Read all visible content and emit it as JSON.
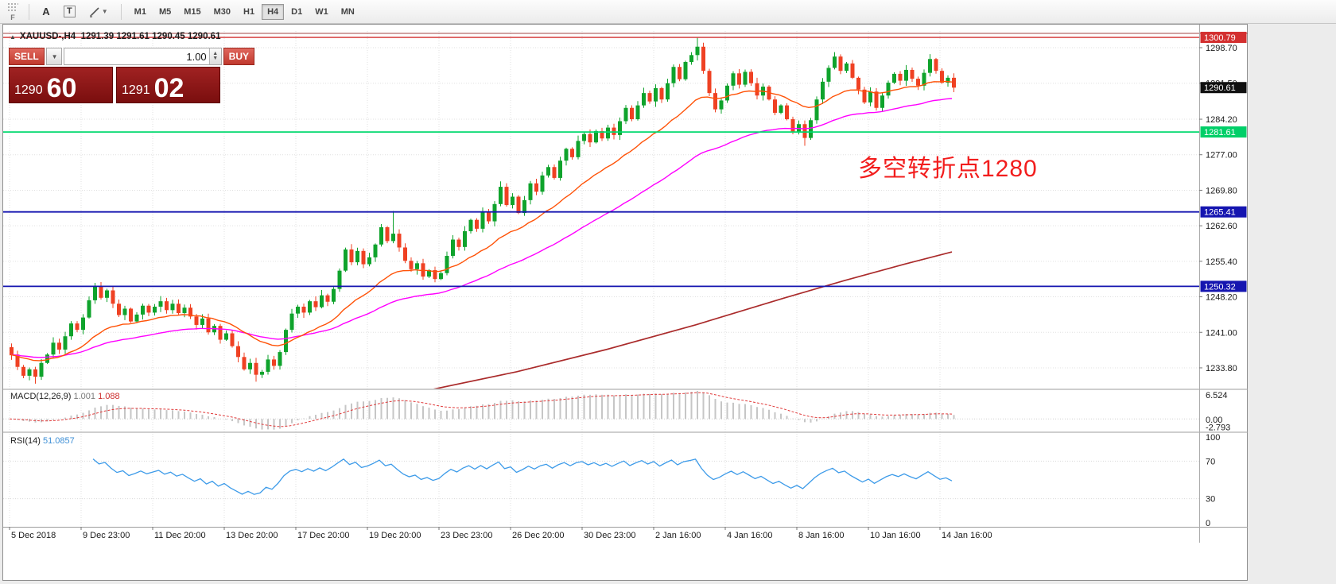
{
  "toolbar": {
    "corner_label": "F",
    "icon_a_label": "A",
    "icon_t_label": "T",
    "timeframes": [
      "M1",
      "M5",
      "M15",
      "M30",
      "H1",
      "H4",
      "D1",
      "W1",
      "MN"
    ],
    "active_timeframe": "H4"
  },
  "chart_header": {
    "icon": "▲",
    "title": "XAUUSD-,H4  1291.39 1291.61 1290.45 1290.61"
  },
  "trade_panel": {
    "sell_label": "SELL",
    "buy_label": "BUY",
    "volume": "1.00",
    "sell_price_main": "1290",
    "sell_price_big": "60",
    "buy_price_main": "1291",
    "buy_price_big": "02"
  },
  "annotation": {
    "text": "多空转折点1280",
    "color": "#f21d1d"
  },
  "price_scale": {
    "labels": [
      {
        "text": "1298.70",
        "value": 1298.7
      },
      {
        "text": "1291.50",
        "value": 1291.5
      },
      {
        "text": "1284.20",
        "value": 1284.2
      },
      {
        "text": "1277.00",
        "value": 1277.0
      },
      {
        "text": "1269.80",
        "value": 1269.8
      },
      {
        "text": "1262.60",
        "value": 1262.6
      },
      {
        "text": "1255.40",
        "value": 1255.4
      },
      {
        "text": "1248.20",
        "value": 1248.2
      },
      {
        "text": "1241.00",
        "value": 1241.0
      },
      {
        "text": "1233.80",
        "value": 1233.8
      }
    ],
    "badges": [
      {
        "name": "resistance-line-price",
        "text": "1300.79",
        "value": 1300.79,
        "bg": "#d32f2f",
        "fg": "#ffffff"
      },
      {
        "name": "green-level-price",
        "text": "1281.61",
        "value": 1281.61,
        "bg": "#00cf68",
        "fg": "#ffffff"
      },
      {
        "name": "support-level-1-price",
        "text": "1265.41",
        "value": 1265.41,
        "bg": "#1515b0",
        "fg": "#ffffff"
      },
      {
        "name": "support-level-2-price",
        "text": "1250.32",
        "value": 1250.32,
        "bg": "#1515b0",
        "fg": "#ffffff"
      },
      {
        "name": "current-price",
        "text": "1290.61",
        "value": 1290.61,
        "bg": "#101010",
        "fg": "#ffffff"
      }
    ]
  },
  "hlines": [
    {
      "value": 1300.79,
      "color": "#d32f2f",
      "width": 1.4
    },
    {
      "value": 1281.61,
      "color": "#00d96d",
      "width": 1.8
    },
    {
      "value": 1265.41,
      "color": "#1515b0",
      "width": 1.8
    },
    {
      "value": 1250.32,
      "color": "#1515b0",
      "width": 1.8
    }
  ],
  "macd_panel": {
    "name": "MACD(12,26,9)",
    "value_main": "1.001",
    "value_signal": "1.088",
    "scale": [
      "6.524",
      "0.00",
      "-2.793"
    ]
  },
  "rsi_panel": {
    "name": "RSI(14)",
    "value": "51.0857",
    "scale": [
      "100",
      "70",
      "30",
      "0"
    ]
  },
  "time_axis": {
    "labels": [
      "5 Dec 2018",
      "9 Dec 23:00",
      "11 Dec 20:00",
      "13 Dec 20:00",
      "17 Dec 20:00",
      "19 Dec 20:00",
      "23 Dec 23:00",
      "26 Dec 20:00",
      "30 Dec 23:00",
      "2 Jan 16:00",
      "4 Jan 16:00",
      "8 Jan 16:00",
      "10 Jan 16:00",
      "14 Jan 16:00"
    ],
    "label_step_candles": 12
  },
  "chart_data": {
    "type": "candlestick",
    "symbol": "XAUUSD-",
    "timeframe": "H4",
    "ylim": [
      1229.6,
      1302.1
    ],
    "open0": 1238.0,
    "closes": [
      1236.5,
      1234.0,
      1232.2,
      1233.5,
      1232.0,
      1234.8,
      1236.5,
      1238.9,
      1237.5,
      1240.2,
      1242.8,
      1241.5,
      1244.0,
      1247.5,
      1250.3,
      1248.0,
      1249.5,
      1246.8,
      1244.5,
      1245.8,
      1243.2,
      1244.6,
      1246.4,
      1245.0,
      1246.2,
      1247.3,
      1245.5,
      1246.8,
      1244.9,
      1246.0,
      1244.2,
      1242.5,
      1243.8,
      1241.0,
      1242.3,
      1239.5,
      1240.8,
      1238.2,
      1236.0,
      1233.5,
      1234.8,
      1232.4,
      1233.0,
      1235.5,
      1234.2,
      1237.0,
      1241.5,
      1244.8,
      1246.2,
      1245.0,
      1247.3,
      1246.1,
      1248.5,
      1247.2,
      1249.8,
      1253.5,
      1257.8,
      1255.2,
      1257.5,
      1254.8,
      1256.2,
      1258.8,
      1262.3,
      1259.5,
      1261.0,
      1258.2,
      1255.5,
      1253.8,
      1255.0,
      1252.3,
      1253.6,
      1251.8,
      1253.0,
      1256.5,
      1259.8,
      1258.3,
      1261.5,
      1263.8,
      1262.0,
      1265.3,
      1263.5,
      1267.0,
      1270.5,
      1266.8,
      1268.5,
      1265.2,
      1267.8,
      1271.2,
      1269.5,
      1272.8,
      1274.5,
      1272.3,
      1275.8,
      1278.2,
      1276.5,
      1279.8,
      1281.2,
      1279.5,
      1281.8,
      1280.3,
      1282.5,
      1281.0,
      1283.8,
      1286.5,
      1284.2,
      1287.0,
      1289.5,
      1287.8,
      1290.5,
      1288.2,
      1291.5,
      1294.8,
      1292.3,
      1295.8,
      1297.2,
      1298.9,
      1294.0,
      1289.5,
      1286.2,
      1288.0,
      1291.0,
      1293.5,
      1291.2,
      1293.8,
      1291.5,
      1289.0,
      1290.8,
      1288.2,
      1285.5,
      1287.0,
      1284.2,
      1281.5,
      1283.2,
      1280.4,
      1284.0,
      1288.2,
      1291.8,
      1294.6,
      1296.9,
      1294.0,
      1295.5,
      1292.6,
      1290.2,
      1287.6,
      1289.8,
      1286.5,
      1289.0,
      1291.6,
      1293.4,
      1292.0,
      1294.2,
      1292.4,
      1291.0,
      1293.6,
      1296.4,
      1294.0,
      1291.6,
      1292.6,
      1290.6
    ],
    "wick_spikes": {
      "4": {
        "low": 1230.6
      },
      "41": {
        "low": 1231.0
      },
      "64": {
        "high": 1265.6
      },
      "115": {
        "high": 1300.7
      },
      "133": {
        "low": 1278.8
      },
      "138": {
        "high": 1297.8
      },
      "154": {
        "high": 1297.4
      }
    },
    "candle_up_color": "#0fa32c",
    "candle_down_color": "#ef4123",
    "ma_fast": {
      "period": 20,
      "color": "#ff5207"
    },
    "ma_mid": {
      "period": 50,
      "color": "#ff00ff"
    },
    "ma_slow": {
      "color": "#aa2b2b",
      "points": [
        [
          70,
          1229.2
        ],
        [
          85,
          1233.0
        ],
        [
          100,
          1237.5
        ],
        [
          115,
          1242.5
        ],
        [
          130,
          1248.0
        ],
        [
          140,
          1251.5
        ],
        [
          150,
          1254.8
        ],
        [
          158,
          1257.3
        ]
      ]
    },
    "macd": {
      "fast": 12,
      "slow": 26,
      "signal": 9,
      "ylim": [
        -2.9,
        6.7
      ],
      "bar_color": "#c6c6c6",
      "signal_color": "#e03a3a"
    },
    "rsi": {
      "period": 14,
      "ylim": [
        0,
        100
      ],
      "levels": [
        70,
        30
      ],
      "color": "#3d9be9"
    }
  }
}
